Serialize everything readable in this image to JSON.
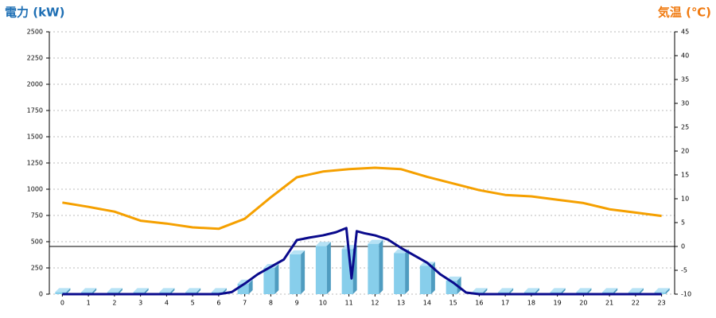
{
  "chart_data": {
    "type": "bar",
    "ylabel": "電力 (kW)",
    "y2label": "気温 (℃)",
    "categories": [
      "0",
      "1",
      "2",
      "3",
      "4",
      "5",
      "6",
      "7",
      "8",
      "9",
      "10",
      "11",
      "12",
      "13",
      "14",
      "15",
      "16",
      "17",
      "18",
      "19",
      "20",
      "21",
      "22",
      "23"
    ],
    "ylim": [
      0,
      2500
    ],
    "yticks": [
      0,
      250,
      500,
      750,
      1000,
      1250,
      1500,
      1750,
      2000,
      2250,
      2500
    ],
    "y2lim": [
      -10,
      45
    ],
    "y2ticks": [
      -10,
      -5,
      0,
      5,
      10,
      15,
      20,
      25,
      30,
      35,
      40,
      45
    ],
    "y2_reference_line": 0,
    "grid": true,
    "series": [
      {
        "type": "bar",
        "color": "#87ceeb",
        "values": [
          20,
          20,
          20,
          20,
          20,
          20,
          20,
          100,
          250,
          380,
          460,
          430,
          480,
          390,
          270,
          130,
          20,
          20,
          20,
          20,
          20,
          20,
          20,
          20
        ]
      },
      {
        "type": "line",
        "axis": "y2",
        "color": "#f5a000",
        "values": [
          9.2,
          8.3,
          7.3,
          5.4,
          4.8,
          4.0,
          3.7,
          5.8,
          10.3,
          14.5,
          15.7,
          16.2,
          16.5,
          16.2,
          14.6,
          13.2,
          11.8,
          10.8,
          10.5,
          9.8,
          9.1,
          7.8,
          7.1,
          6.4
        ]
      },
      {
        "type": "line",
        "color": "#0a0a8c",
        "x": [
          0,
          6,
          6.5,
          7,
          7.5,
          8,
          8.5,
          9,
          9.5,
          10,
          10.5,
          10.9,
          11.1,
          11.3,
          11.6,
          12,
          12.5,
          13,
          13.5,
          14,
          14.5,
          15,
          15.5,
          16,
          23
        ],
        "values": [
          0,
          0,
          20,
          100,
          190,
          260,
          330,
          515,
          540,
          560,
          590,
          630,
          150,
          600,
          580,
          560,
          520,
          440,
          370,
          300,
          190,
          110,
          15,
          0,
          0
        ]
      }
    ]
  }
}
